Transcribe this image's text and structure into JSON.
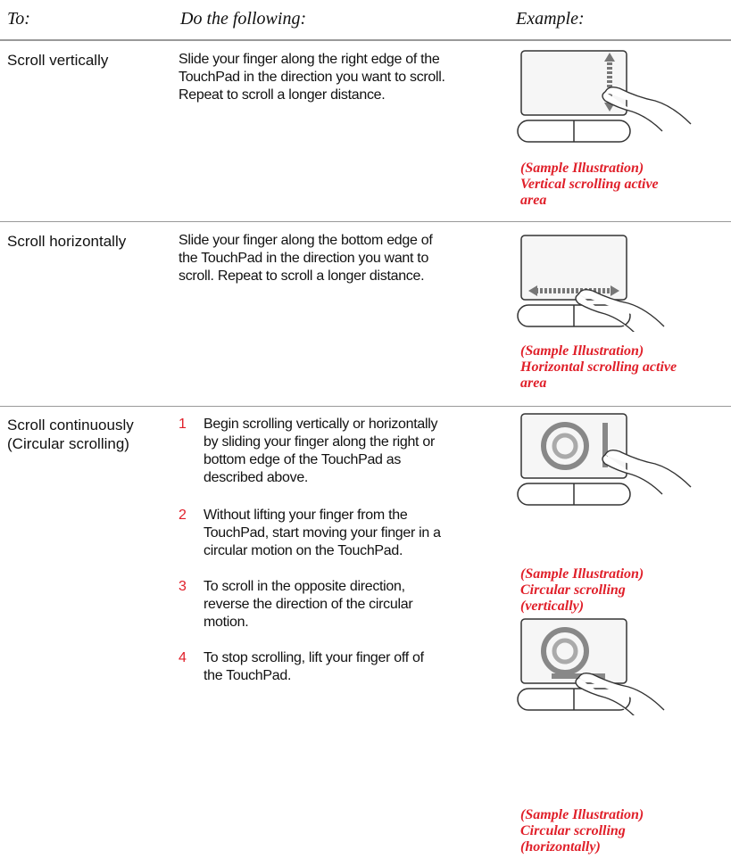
{
  "header": {
    "to": "To:",
    "do": "Do the following:",
    "example": "Example:"
  },
  "rows": [
    {
      "action": [
        "Scroll vertically"
      ],
      "description": [
        "Slide your finger along the right edge of the",
        "TouchPad in the direction you want to scroll.",
        "Repeat to scroll a longer distance."
      ],
      "captions": [
        [
          "(Sample Illustration)",
          "Vertical scrolling active",
          "area"
        ]
      ]
    },
    {
      "action": [
        "Scroll horizontally"
      ],
      "description": [
        "Slide your finger along the bottom edge of",
        "the TouchPad in the direction you want to",
        "scroll. Repeat to scroll a longer distance."
      ],
      "captions": [
        [
          "(Sample Illustration)",
          "Horizontal scrolling active",
          "area"
        ]
      ]
    },
    {
      "action": [
        "Scroll continuously",
        "(Circular scrolling)"
      ],
      "steps": [
        {
          "number": 1,
          "lines": [
            "Begin scrolling vertically or horizontally",
            "by sliding your finger along the right or",
            "bottom edge of the TouchPad as",
            "described above."
          ]
        },
        {
          "number": 2,
          "lines": [
            "Without lifting your finger from the",
            "TouchPad, start moving your finger in a",
            "circular motion on the TouchPad."
          ]
        },
        {
          "number": 3,
          "lines": [
            "To scroll in the opposite direction,",
            "reverse the direction of the circular",
            "motion."
          ]
        },
        {
          "number": 4,
          "lines": [
            "To stop scrolling, lift your finger off of",
            "the TouchPad."
          ]
        }
      ],
      "captions": [
        [
          "(Sample Illustration)",
          "Circular scrolling",
          "(vertically)"
        ],
        [
          "(Sample Illustration)",
          "Circular scrolling",
          "(horizontally)"
        ]
      ]
    }
  ]
}
